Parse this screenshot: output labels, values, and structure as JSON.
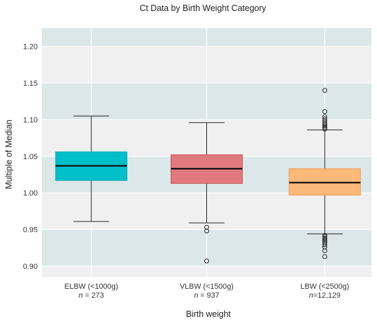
{
  "chart_data": {
    "type": "box",
    "title": "Ct Data by Birth Weight Category",
    "xlabel": "Birth weight",
    "ylabel": "Multiple of Median",
    "ylim": [
      0.885,
      1.225
    ],
    "yticks": [
      "0.90",
      "0.95",
      "1.00",
      "1.05",
      "1.10",
      "1.15",
      "1.20"
    ],
    "grid": true,
    "categories": [
      {
        "label": "ELBW (<1000g)",
        "n_prefix": "n",
        "n_value": " = 273",
        "color": "#00BFC9",
        "edge": "#00A7B0",
        "whisker_low": 0.961,
        "q1": 1.017,
        "median": 1.037,
        "q3": 1.056,
        "whisker_high": 1.105,
        "outliers": []
      },
      {
        "label": "VLBW (<1500g)",
        "n_prefix": "n",
        "n_value": " = 937",
        "color": "#E07A7F",
        "edge": "#C8474F",
        "whisker_low": 0.959,
        "q1": 1.013,
        "median": 1.033,
        "q3": 1.052,
        "whisker_high": 1.096,
        "outliers": [
          0.953,
          0.948,
          0.907
        ]
      },
      {
        "label": "LBW (<2500g)",
        "n_prefix": "n",
        "n_value": "=12,129",
        "color": "#FDB97A",
        "edge": "#EE9A50",
        "whisker_low": 0.944,
        "q1": 0.997,
        "median": 1.014,
        "q3": 1.033,
        "whisker_high": 1.086,
        "outliers": [
          1.14,
          1.111,
          1.104,
          1.101,
          1.098,
          1.095,
          1.093,
          1.091,
          1.089,
          1.087,
          0.942,
          0.94,
          0.938,
          0.936,
          0.934,
          0.932,
          0.929,
          0.926,
          0.921,
          0.913
        ]
      }
    ]
  }
}
